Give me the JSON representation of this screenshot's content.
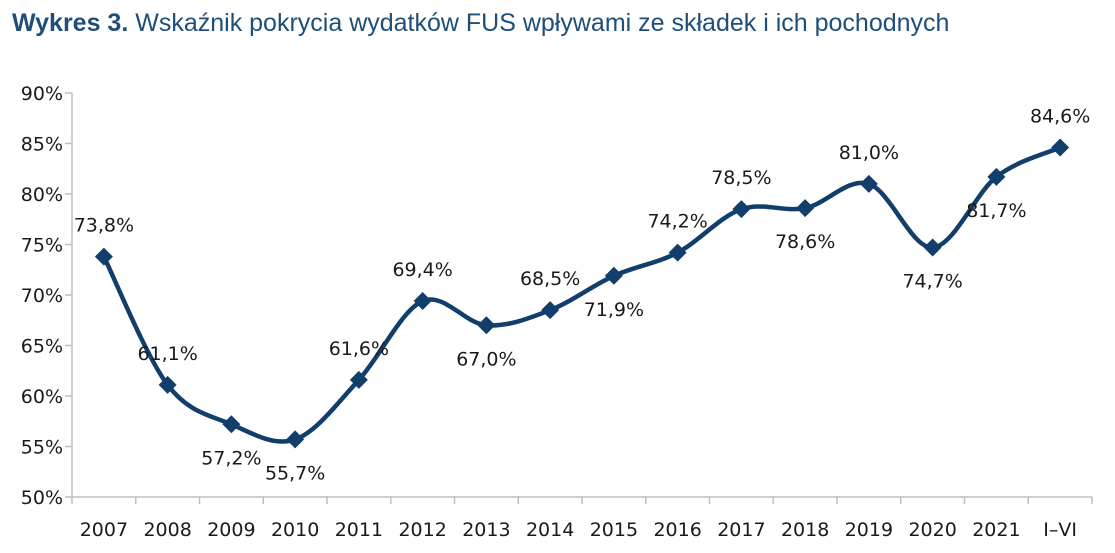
{
  "header": {
    "title_prefix": "Wykres 3.",
    "title_text": "Wskaźnik pokrycia wydatków FUS wpływami ze składek i ich pochodnych"
  },
  "colors": {
    "title": "#1f4e79",
    "series": "#123e6b",
    "grid": "#bfbfbf",
    "text": "#1a1a1a"
  },
  "chart_data": {
    "type": "line",
    "title": "Wskaźnik pokrycia wydatków FUS wpływami ze składek i ich pochodnych",
    "xlabel": "",
    "ylabel": "",
    "categories": [
      "2007",
      "2008",
      "2009",
      "2010",
      "2011",
      "2012",
      "2013",
      "2014",
      "2015",
      "2016",
      "2017",
      "2018",
      "2019",
      "2020",
      "2021",
      "I–VI"
    ],
    "series": [
      {
        "name": "Wskaźnik pokrycia",
        "values": [
          73.8,
          61.1,
          57.2,
          55.7,
          61.6,
          69.4,
          67.0,
          68.5,
          71.9,
          74.2,
          78.5,
          78.6,
          81.0,
          74.7,
          81.7,
          84.6
        ],
        "data_labels": [
          "73,8%",
          "61,1%",
          "57,2%",
          "55,7%",
          "61,6%",
          "69,4%",
          "67,0%",
          "68,5%",
          "71,9%",
          "74,2%",
          "78,5%",
          "78,6%",
          "81,0%",
          "74,7%",
          "81,7%",
          "84,6%"
        ],
        "label_positions": [
          "above",
          "above",
          "below",
          "below",
          "above",
          "above",
          "below",
          "above",
          "below",
          "above",
          "above",
          "below",
          "above",
          "below",
          "below",
          "above"
        ]
      }
    ],
    "ylim": [
      50,
      90
    ],
    "yticks": [
      50,
      55,
      60,
      65,
      70,
      75,
      80,
      85,
      90
    ],
    "ytick_labels": [
      "50%",
      "55%",
      "60%",
      "65%",
      "70%",
      "75%",
      "80%",
      "85%",
      "90%"
    ],
    "grid": false,
    "marker": "diamond",
    "smooth": true,
    "legend": "none"
  }
}
